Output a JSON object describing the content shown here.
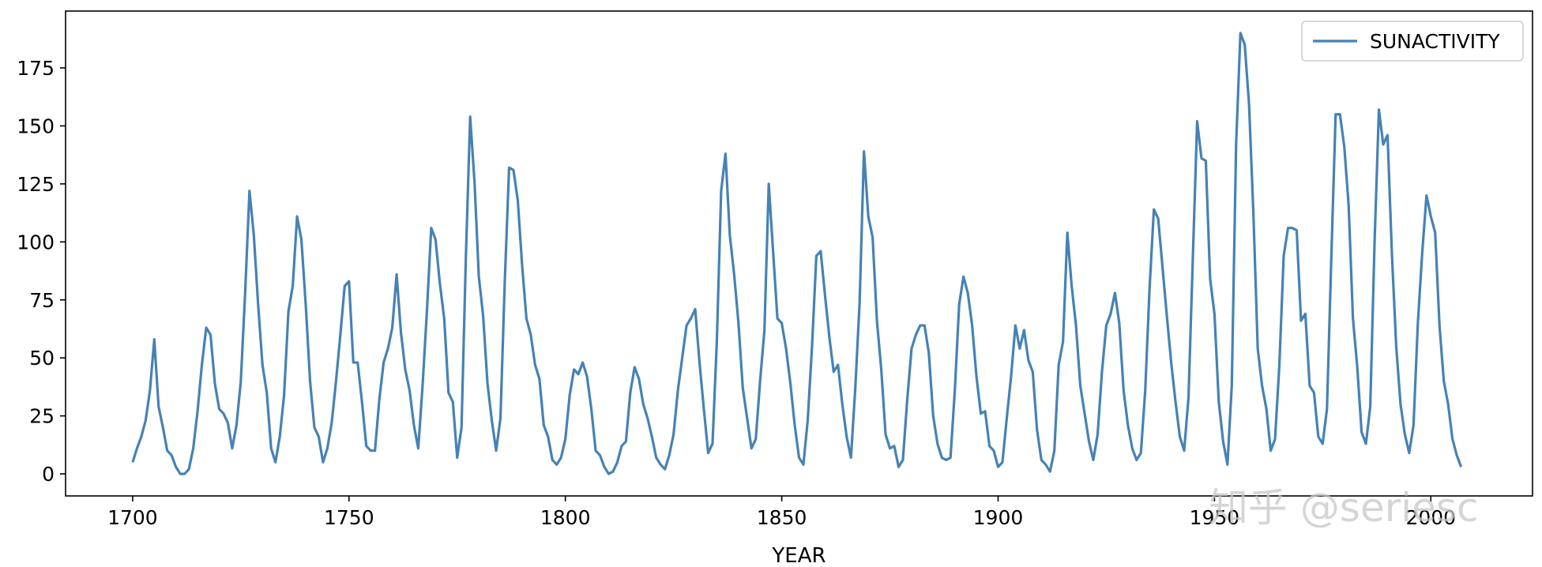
{
  "chart_data": {
    "type": "line",
    "xlabel": "YEAR",
    "ylabel": "",
    "xlim": [
      1684.5,
      2023.5
    ],
    "ylim": [
      -9.5,
      199.5
    ],
    "xticks": [
      1700,
      1750,
      1800,
      1850,
      1900,
      1950,
      2000
    ],
    "yticks": [
      0,
      25,
      50,
      75,
      100,
      125,
      150,
      175
    ],
    "grid": false,
    "legend_position": "top-right",
    "series": [
      {
        "name": "SUNACTIVITY",
        "color": "#4682b4",
        "x_start": 1700,
        "x_step": 1,
        "values": [
          5,
          11,
          16,
          23,
          36,
          58,
          29,
          20,
          10,
          8,
          3,
          0,
          0,
          2,
          11,
          27,
          47,
          63,
          60,
          39,
          28,
          26,
          22,
          11,
          21,
          40,
          78,
          122,
          103,
          73,
          47,
          35,
          11,
          5,
          16,
          34,
          70,
          81,
          111,
          101,
          73,
          40,
          20,
          16,
          5,
          11,
          22,
          40,
          60,
          81,
          83,
          48,
          48,
          31,
          12,
          10,
          10,
          32,
          48,
          54,
          63,
          86,
          61,
          45,
          36,
          21,
          11,
          38,
          70,
          106,
          101,
          82,
          67,
          35,
          31,
          7,
          20,
          93,
          154,
          126,
          85,
          68,
          39,
          23,
          10,
          24,
          83,
          132,
          131,
          118,
          90,
          67,
          60,
          47,
          41,
          21,
          16,
          6,
          4,
          7,
          15,
          34,
          45,
          43,
          48,
          42,
          28,
          10,
          8,
          3,
          0,
          1,
          5,
          12,
          14,
          35,
          46,
          41,
          30,
          24,
          16,
          7,
          4,
          2,
          8,
          17,
          36,
          50,
          64,
          67,
          71,
          48,
          28,
          9,
          13,
          57,
          122,
          138,
          103,
          86,
          65,
          37,
          24,
          11,
          15,
          40,
          62,
          125,
          96,
          67,
          65,
          54,
          39,
          21,
          7,
          4,
          23,
          55,
          94,
          96,
          77,
          59,
          44,
          47,
          30,
          16,
          7,
          37,
          74,
          139,
          111,
          102,
          66,
          45,
          17,
          11,
          12,
          3,
          6,
          32,
          54,
          60,
          64,
          64,
          52,
          25,
          13,
          7,
          6,
          7,
          36,
          73,
          85,
          78,
          64,
          42,
          26,
          27,
          12,
          10,
          3,
          5,
          24,
          42,
          64,
          54,
          62,
          49,
          44,
          19,
          6,
          4,
          1,
          10,
          47,
          57,
          104,
          81,
          64,
          38,
          26,
          14,
          6,
          17,
          44,
          64,
          69,
          78,
          65,
          36,
          21,
          11,
          6,
          9,
          36,
          80,
          114,
          110,
          89,
          68,
          48,
          31,
          16,
          10,
          33,
          93,
          152,
          136,
          135,
          84,
          69,
          31,
          14,
          4,
          38,
          142,
          190,
          185,
          159,
          112,
          54,
          38,
          28,
          10,
          15,
          47,
          94,
          106,
          106,
          105,
          66,
          69,
          38,
          35,
          16,
          13,
          28,
          93,
          155,
          155,
          141,
          116,
          67,
          46,
          18,
          13,
          29,
          100,
          157,
          142,
          146,
          95,
          55,
          30,
          17,
          9,
          21,
          65,
          95,
          120,
          111,
          104,
          64,
          40,
          30,
          15,
          8,
          3
        ]
      }
    ]
  },
  "watermark": {
    "text": "知乎 @seriesc"
  }
}
